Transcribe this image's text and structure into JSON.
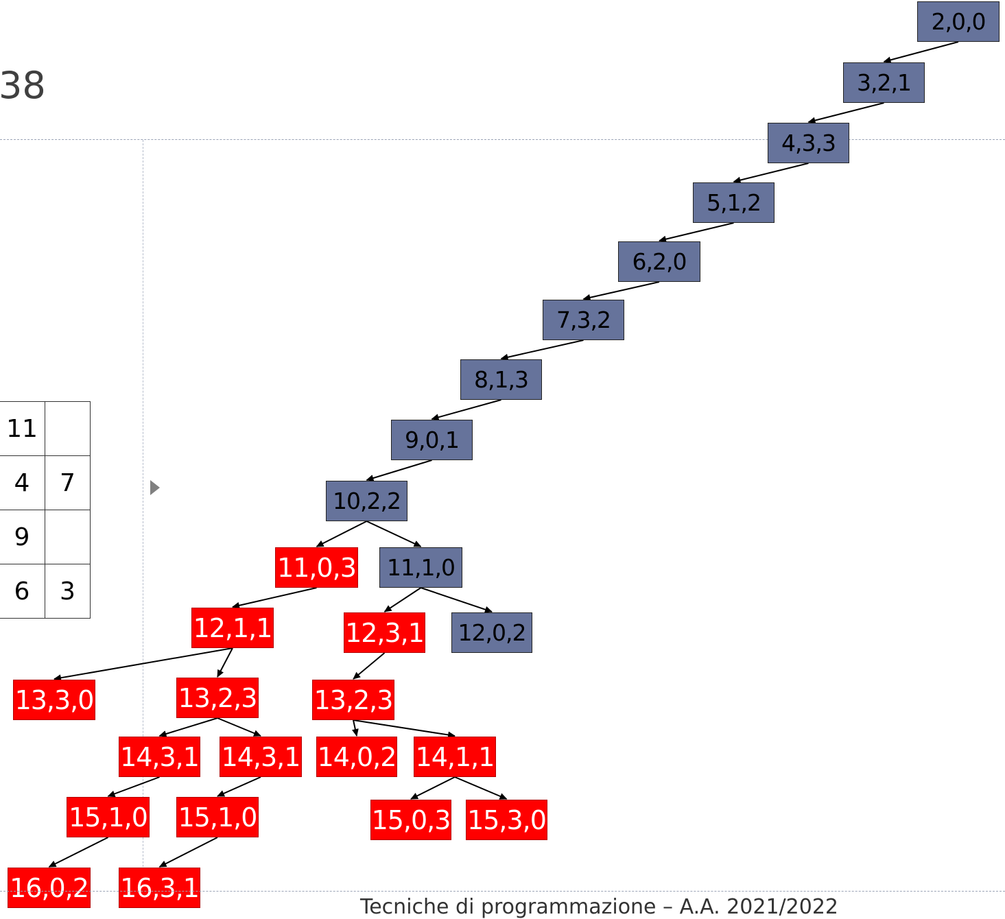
{
  "slide": {
    "title": "38",
    "footer": "Tecniche di programmazione – A.A. 2021/2022"
  },
  "grid": {
    "rows": [
      [
        "11",
        ""
      ],
      [
        "4",
        "7"
      ],
      [
        "9",
        ""
      ],
      [
        "6",
        "3"
      ]
    ]
  },
  "tree": {
    "nodes": [
      {
        "id": "n1",
        "label": "2,0,0",
        "color": "blue"
      },
      {
        "id": "n2",
        "label": "3,2,1",
        "color": "blue"
      },
      {
        "id": "n3",
        "label": "4,3,3",
        "color": "blue"
      },
      {
        "id": "n4",
        "label": "5,1,2",
        "color": "blue"
      },
      {
        "id": "n5",
        "label": "6,2,0",
        "color": "blue"
      },
      {
        "id": "n6",
        "label": "7,3,2",
        "color": "blue"
      },
      {
        "id": "n7",
        "label": "8,1,3",
        "color": "blue"
      },
      {
        "id": "n8",
        "label": "9,0,1",
        "color": "blue"
      },
      {
        "id": "n9",
        "label": "10,2,2",
        "color": "blue"
      },
      {
        "id": "n10",
        "label": "11,0,3",
        "color": "red"
      },
      {
        "id": "n11",
        "label": "11,1,0",
        "color": "blue"
      },
      {
        "id": "n12",
        "label": "12,1,1",
        "color": "red"
      },
      {
        "id": "n13",
        "label": "12,3,1",
        "color": "red"
      },
      {
        "id": "n14",
        "label": "12,0,2",
        "color": "blue"
      },
      {
        "id": "n15",
        "label": "13,3,0",
        "color": "red"
      },
      {
        "id": "n16",
        "label": "13,2,3",
        "color": "red"
      },
      {
        "id": "n17",
        "label": "13,2,3",
        "color": "red"
      },
      {
        "id": "n18",
        "label": "14,3,1",
        "color": "red"
      },
      {
        "id": "n19",
        "label": "14,3,1",
        "color": "red"
      },
      {
        "id": "n20",
        "label": "14,0,2",
        "color": "red"
      },
      {
        "id": "n21",
        "label": "14,1,1",
        "color": "red"
      },
      {
        "id": "n22",
        "label": "15,1,0",
        "color": "red"
      },
      {
        "id": "n23",
        "label": "15,1,0",
        "color": "red"
      },
      {
        "id": "n24",
        "label": "15,0,3",
        "color": "red"
      },
      {
        "id": "n25",
        "label": "15,3,0",
        "color": "red"
      },
      {
        "id": "n26",
        "label": "16,0,2",
        "color": "red"
      },
      {
        "id": "n27",
        "label": "16,3,1",
        "color": "red"
      }
    ],
    "edges": [
      [
        "n1",
        "n2"
      ],
      [
        "n2",
        "n3"
      ],
      [
        "n3",
        "n4"
      ],
      [
        "n4",
        "n5"
      ],
      [
        "n5",
        "n6"
      ],
      [
        "n6",
        "n7"
      ],
      [
        "n7",
        "n8"
      ],
      [
        "n8",
        "n9"
      ],
      [
        "n9",
        "n10"
      ],
      [
        "n9",
        "n11"
      ],
      [
        "n10",
        "n12"
      ],
      [
        "n11",
        "n13"
      ],
      [
        "n11",
        "n14"
      ],
      [
        "n12",
        "n15"
      ],
      [
        "n12",
        "n16"
      ],
      [
        "n13",
        "n17"
      ],
      [
        "n16",
        "n18"
      ],
      [
        "n16",
        "n19"
      ],
      [
        "n17",
        "n20"
      ],
      [
        "n17",
        "n21"
      ],
      [
        "n18",
        "n22"
      ],
      [
        "n19",
        "n23"
      ],
      [
        "n21",
        "n24"
      ],
      [
        "n21",
        "n25"
      ],
      [
        "n22",
        "n26"
      ],
      [
        "n23",
        "n27"
      ]
    ],
    "colors": {
      "blue": "#66739b",
      "red": "#ff0000"
    }
  }
}
